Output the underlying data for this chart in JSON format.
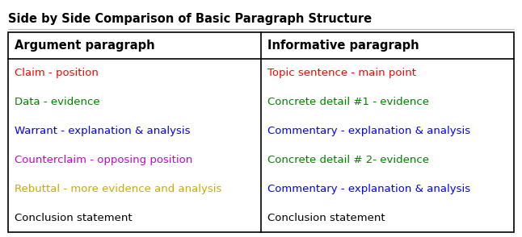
{
  "title": "Side by Side Comparison of Basic Paragraph Structure",
  "col1_header": "Argument paragraph",
  "col2_header": "Informative paragraph",
  "col1_rows": [
    {
      "text": "Claim - position",
      "color": "#ff0000"
    },
    {
      "text": "Data - evidence",
      "color": "#008000"
    },
    {
      "text": "Warrant - explanation & analysis",
      "color": "#0000ff"
    },
    {
      "text": "Counterclaim - opposing position",
      "color": "#cc00cc"
    },
    {
      "text": "Rebuttal - more evidence and analysis",
      "color": "#ccaa00"
    },
    {
      "text": "Conclusion statement",
      "color": "#000000"
    }
  ],
  "col2_rows": [
    {
      "text": "Topic sentence - main point",
      "color": "#ff0000"
    },
    {
      "text": "Concrete detail #1 - evidence",
      "color": "#008000"
    },
    {
      "text": "Commentary - explanation & analysis",
      "color": "#0000ff"
    },
    {
      "text": "Concrete detail # 2- evidence",
      "color": "#008000"
    },
    {
      "text": "Commentary - explanation & analysis",
      "color": "#0000ff"
    },
    {
      "text": "Conclusion statement",
      "color": "#000000"
    }
  ],
  "background_color": "#ffffff",
  "border_color": "#000000",
  "title_fontsize": 10.5,
  "header_fontsize": 10.5,
  "row_fontsize": 9.5
}
